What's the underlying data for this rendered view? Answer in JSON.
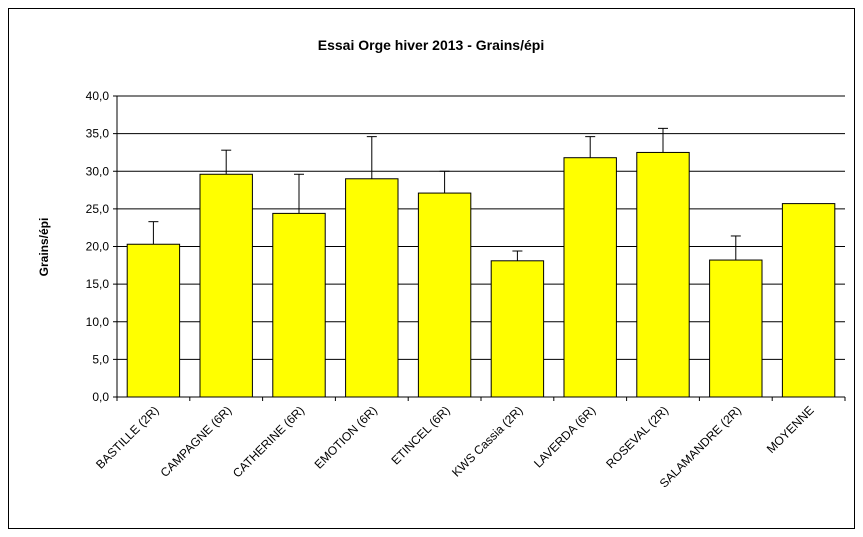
{
  "chart_data": {
    "type": "bar",
    "title": "Essai Orge hiver 2013 - Grains/épi",
    "y_label": "Grains/épi",
    "categories": [
      "BASTILLE (2R)",
      "CAMPAGNE (6R)",
      "CATHERINE (6R)",
      "EMOTION (6R)",
      "ETINCEL (6R)",
      "KWS Cassia (2R)",
      "LAVERDA (6R)",
      "ROSEVAL (2R)",
      "SALAMANDRE (2R)",
      "MOYENNE"
    ],
    "values": [
      20.3,
      29.6,
      24.4,
      29.0,
      27.1,
      18.1,
      31.8,
      32.5,
      18.2,
      25.7
    ],
    "errors": [
      3.0,
      3.2,
      5.2,
      5.6,
      2.9,
      1.3,
      2.8,
      3.2,
      3.2,
      null
    ],
    "color": "#ffff00",
    "ylim": [
      0,
      40
    ],
    "yticks": [
      {
        "value": 0,
        "label": "0,0"
      },
      {
        "value": 5,
        "label": "5,0"
      },
      {
        "value": 10,
        "label": "10,0"
      },
      {
        "value": 15,
        "label": "15,0"
      },
      {
        "value": 20,
        "label": "20,0"
      },
      {
        "value": 25,
        "label": "25,0"
      },
      {
        "value": 30,
        "label": "30,0"
      },
      {
        "value": 35,
        "label": "35,0"
      },
      {
        "value": 40,
        "label": "40,0"
      }
    ],
    "grid": true
  }
}
